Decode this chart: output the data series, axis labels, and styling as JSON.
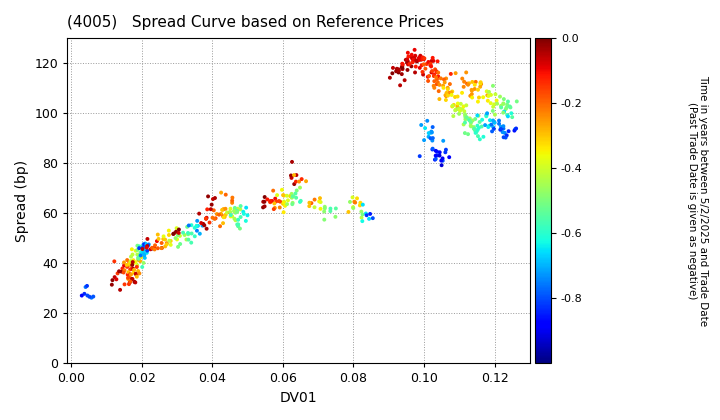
{
  "title": "(4005)   Spread Curve based on Reference Prices",
  "xlabel": "DV01",
  "ylabel": "Spread (bp)",
  "colorbar_label": "Time in years between 5/2/2025 and Trade Date\n(Past Trade Date is given as negative)",
  "xlim": [
    -0.001,
    0.13
  ],
  "ylim": [
    0,
    130
  ],
  "xticks": [
    0.0,
    0.02,
    0.04,
    0.06,
    0.08,
    0.1,
    0.12
  ],
  "yticks": [
    0,
    20,
    40,
    60,
    80,
    100,
    120
  ],
  "cmap": "jet",
  "clim": [
    -1.0,
    0.0
  ],
  "cticks": [
    0.0,
    -0.2,
    -0.4,
    -0.6,
    -0.8
  ],
  "background_color": "#ffffff",
  "grid_color": "#999999",
  "marker_size": 8,
  "title_fontsize": 11,
  "axis_fontsize": 10
}
